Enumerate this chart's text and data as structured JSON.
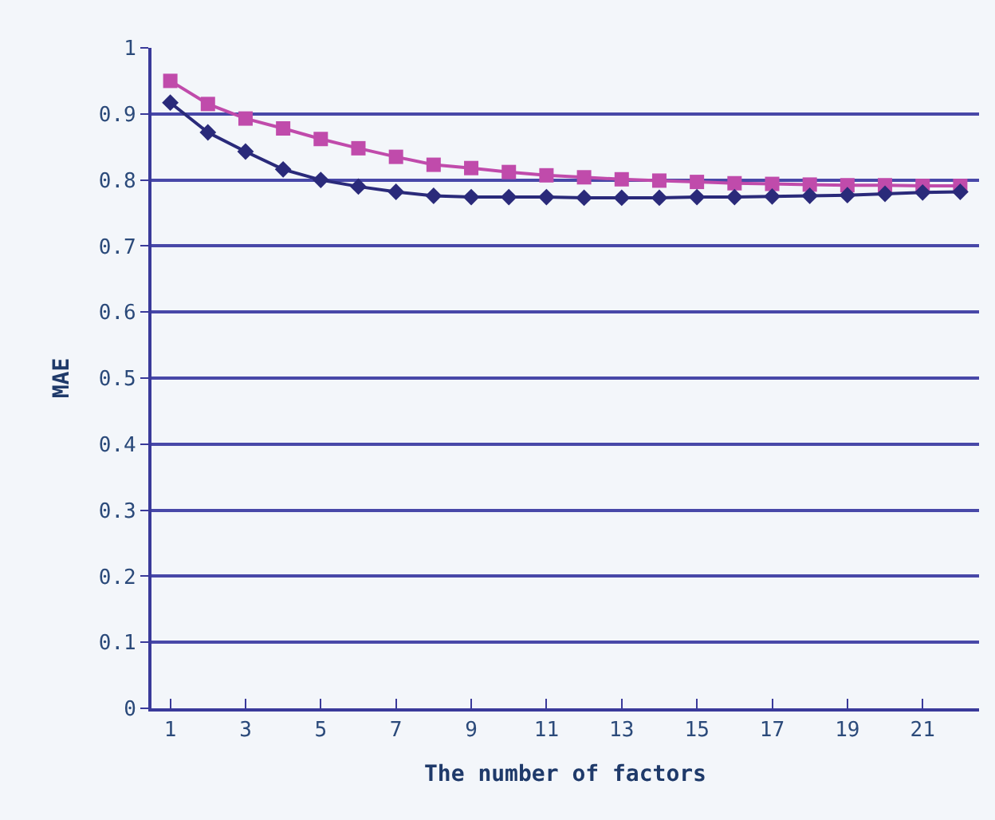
{
  "chart_data": {
    "type": "line",
    "xlabel": "The number of factors",
    "ylabel": "MAE",
    "x": [
      1,
      2,
      3,
      4,
      5,
      6,
      7,
      8,
      9,
      10,
      11,
      12,
      13,
      14,
      15,
      16,
      17,
      18,
      19,
      20,
      21,
      22
    ],
    "xlim": [
      0.5,
      22.5
    ],
    "xticks": [
      1,
      3,
      5,
      7,
      9,
      11,
      13,
      15,
      17,
      19,
      21
    ],
    "series": [
      {
        "color": "#c04bab",
        "marker": "square",
        "values": [
          0.95,
          0.915,
          0.893,
          0.878,
          0.862,
          0.848,
          0.835,
          0.823,
          0.818,
          0.812,
          0.807,
          0.804,
          0.801,
          0.799,
          0.797,
          0.795,
          0.794,
          0.793,
          0.792,
          0.792,
          0.791,
          0.791
        ]
      },
      {
        "color": "#2a2a7a",
        "marker": "diamond",
        "values": [
          0.917,
          0.872,
          0.843,
          0.816,
          0.8,
          0.79,
          0.782,
          0.776,
          0.774,
          0.774,
          0.774,
          0.773,
          0.773,
          0.773,
          0.774,
          0.774,
          0.775,
          0.776,
          0.777,
          0.779,
          0.781,
          0.782
        ]
      }
    ],
    "ylim": [
      0,
      1
    ],
    "yticks": [
      0,
      0.1,
      0.2,
      0.3,
      0.4,
      0.5,
      0.6,
      0.7,
      0.8,
      0.9,
      1
    ],
    "grid": "y"
  }
}
